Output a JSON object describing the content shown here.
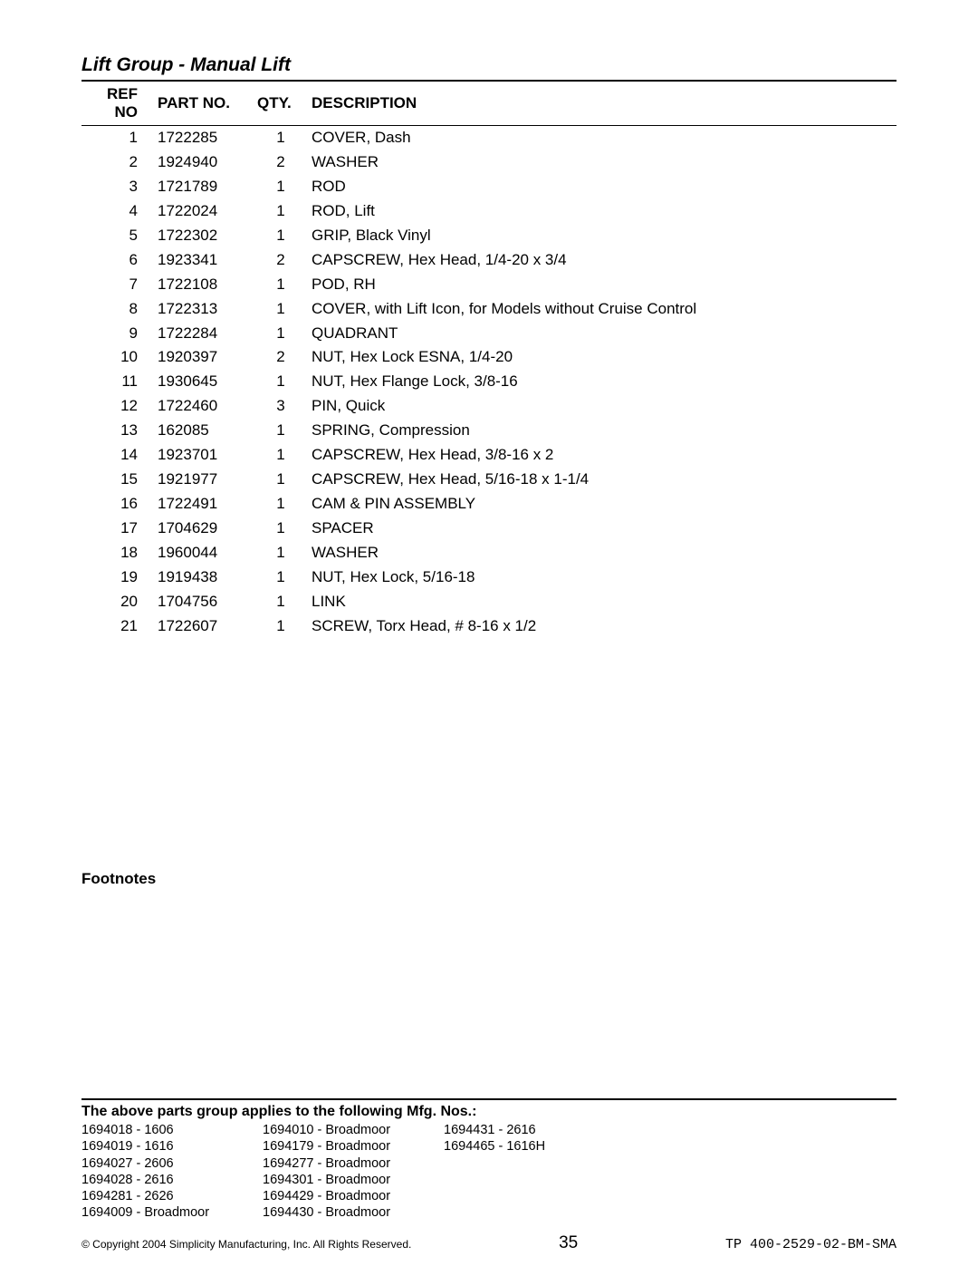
{
  "title": "Lift Group - Manual Lift",
  "table": {
    "columns": [
      "REF NO",
      "PART NO.",
      "QTY.",
      "DESCRIPTION"
    ],
    "rows": [
      {
        "ref": "1",
        "part": "1722285",
        "qty": "1",
        "desc": "COVER, Dash"
      },
      {
        "ref": "2",
        "part": "1924940",
        "qty": "2",
        "desc": "WASHER"
      },
      {
        "ref": "3",
        "part": "1721789",
        "qty": "1",
        "desc": "ROD"
      },
      {
        "ref": "4",
        "part": "1722024",
        "qty": "1",
        "desc": "ROD, Lift"
      },
      {
        "ref": "5",
        "part": "1722302",
        "qty": "1",
        "desc": "GRIP, Black Vinyl"
      },
      {
        "ref": "6",
        "part": "1923341",
        "qty": "2",
        "desc": "CAPSCREW, Hex Head, 1/4-20 x 3/4"
      },
      {
        "ref": "7",
        "part": "1722108",
        "qty": "1",
        "desc": "POD, RH"
      },
      {
        "ref": "8",
        "part": "1722313",
        "qty": "1",
        "desc": "COVER, with Lift Icon, for Models without Cruise Control"
      },
      {
        "ref": "9",
        "part": "1722284",
        "qty": "1",
        "desc": "QUADRANT"
      },
      {
        "ref": "10",
        "part": "1920397",
        "qty": "2",
        "desc": "NUT, Hex Lock ESNA, 1/4-20"
      },
      {
        "ref": "11",
        "part": "1930645",
        "qty": "1",
        "desc": "NUT, Hex Flange Lock, 3/8-16"
      },
      {
        "ref": "12",
        "part": "1722460",
        "qty": "3",
        "desc": "PIN, Quick"
      },
      {
        "ref": "13",
        "part": "162085",
        "qty": "1",
        "desc": "SPRING, Compression"
      },
      {
        "ref": "14",
        "part": "1923701",
        "qty": "1",
        "desc": "CAPSCREW, Hex Head, 3/8-16 x 2"
      },
      {
        "ref": "15",
        "part": "1921977",
        "qty": "1",
        "desc": "CAPSCREW, Hex Head, 5/16-18 x 1-1/4"
      },
      {
        "ref": "16",
        "part": "1722491",
        "qty": "1",
        "desc": "CAM & PIN ASSEMBLY"
      },
      {
        "ref": "17",
        "part": "1704629",
        "qty": "1",
        "desc": "SPACER"
      },
      {
        "ref": "18",
        "part": "1960044",
        "qty": "1",
        "desc": "WASHER"
      },
      {
        "ref": "19",
        "part": "1919438",
        "qty": "1",
        "desc": "NUT, Hex Lock, 5/16-18"
      },
      {
        "ref": "20",
        "part": "1704756",
        "qty": "1",
        "desc": "LINK"
      },
      {
        "ref": "21",
        "part": "1722607",
        "qty": "1",
        "desc": "SCREW, Torx Head, # 8-16 x 1/2"
      }
    ]
  },
  "footnotes": {
    "title": "Footnotes"
  },
  "mfg": {
    "title": "The above parts group applies to the following Mfg. Nos.:",
    "col1": [
      "1694018 - 1606",
      "1694019 - 1616",
      "1694027 - 2606",
      "1694028 - 2616",
      "1694281 - 2626",
      "1694009 - Broadmoor"
    ],
    "col2": [
      "1694010 - Broadmoor",
      "1694179 - Broadmoor",
      "1694277 - Broadmoor",
      "1694301 - Broadmoor",
      "1694429 - Broadmoor",
      "1694430 - Broadmoor"
    ],
    "col3": [
      "1694431 - 2616",
      "1694465 - 1616H"
    ]
  },
  "footer": {
    "copyright": "© Copyright 2004 Simplicity Manufacturing, Inc. All Rights Reserved.",
    "page": "35",
    "doccode": "TP 400-2529-02-BM-SMA"
  }
}
